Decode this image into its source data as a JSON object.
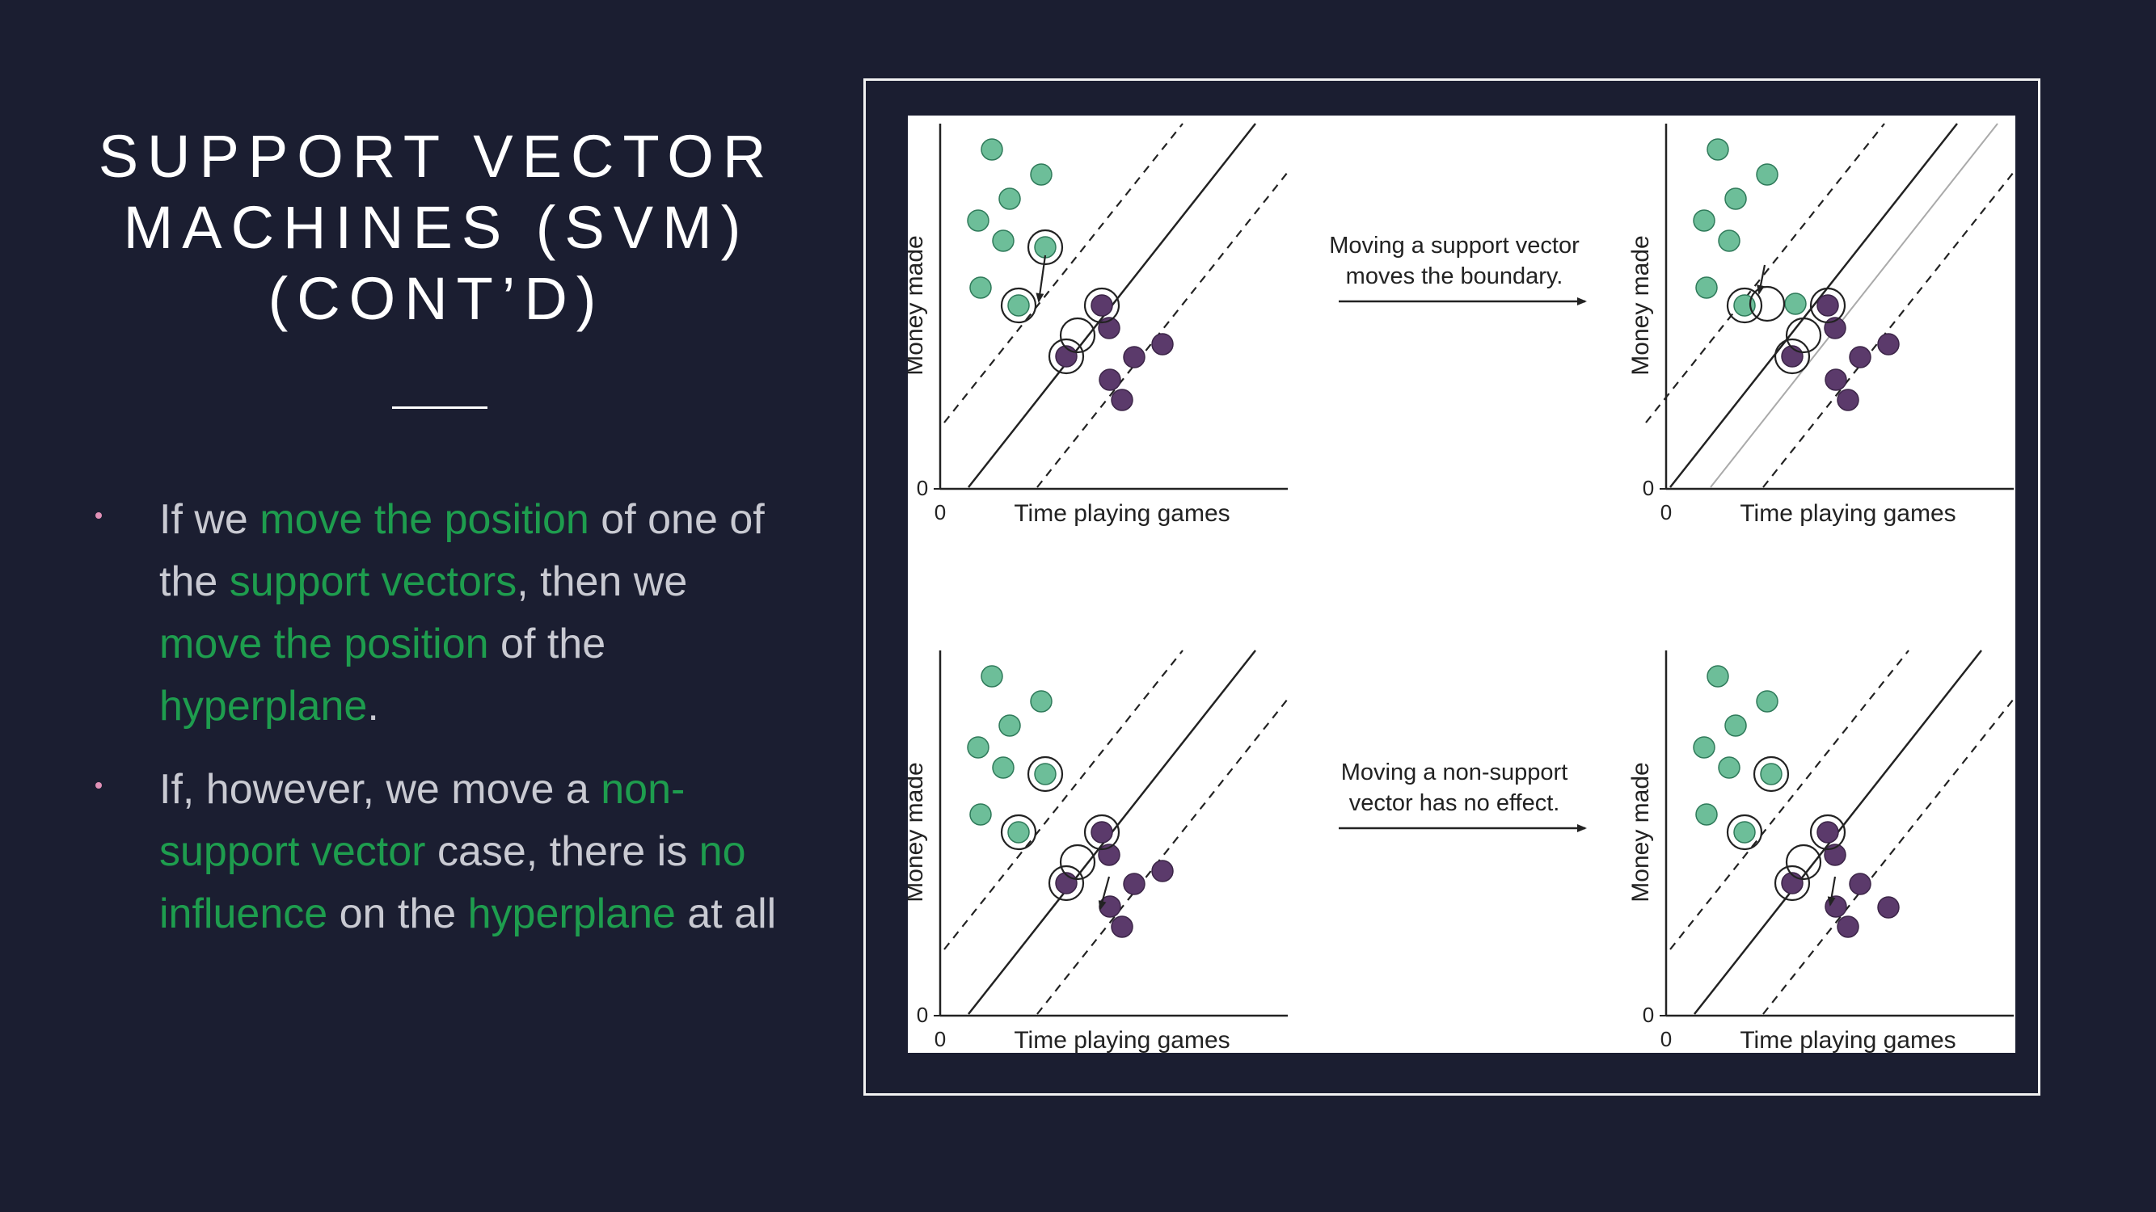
{
  "slide": {
    "title_lines": [
      "SUPPORT VECTOR",
      "MACHINES (SVM)",
      "(CONT’D)"
    ],
    "accent_color": "#1e9d4e",
    "bullet_color": "#e191b7",
    "bullets": [
      {
        "segments": [
          {
            "text": "If we ",
            "highlight": false
          },
          {
            "text": "move the position",
            "highlight": true
          },
          {
            "text": " of one of the ",
            "highlight": false
          },
          {
            "text": "support vectors",
            "highlight": true
          },
          {
            "text": ", then we ",
            "highlight": false
          },
          {
            "text": "move the position",
            "highlight": true
          },
          {
            "text": " of the ",
            "highlight": false
          },
          {
            "text": "hyperplane",
            "highlight": true
          },
          {
            "text": ".",
            "highlight": false
          }
        ]
      },
      {
        "segments": [
          {
            "text": "If, however, we move a ",
            "highlight": false
          },
          {
            "text": "non-support vector",
            "highlight": true
          },
          {
            "text": " case, there is ",
            "highlight": false
          },
          {
            "text": "no influence",
            "highlight": true
          },
          {
            "text": " on the ",
            "highlight": false
          },
          {
            "text": "hyperplane",
            "highlight": true
          },
          {
            "text": " at all",
            "highlight": false
          }
        ]
      }
    ]
  },
  "figure": {
    "x_axis_label": "Time playing games",
    "y_axis_label": "Money made",
    "origin_label": "0",
    "teal_color": "#6dbe99",
    "purple_color": "#5b3a6b",
    "captions": {
      "top": [
        "Moving a support vector",
        "moves the boundary."
      ],
      "bottom": [
        "Moving a non-support",
        "vector has no effect."
      ]
    }
  }
}
